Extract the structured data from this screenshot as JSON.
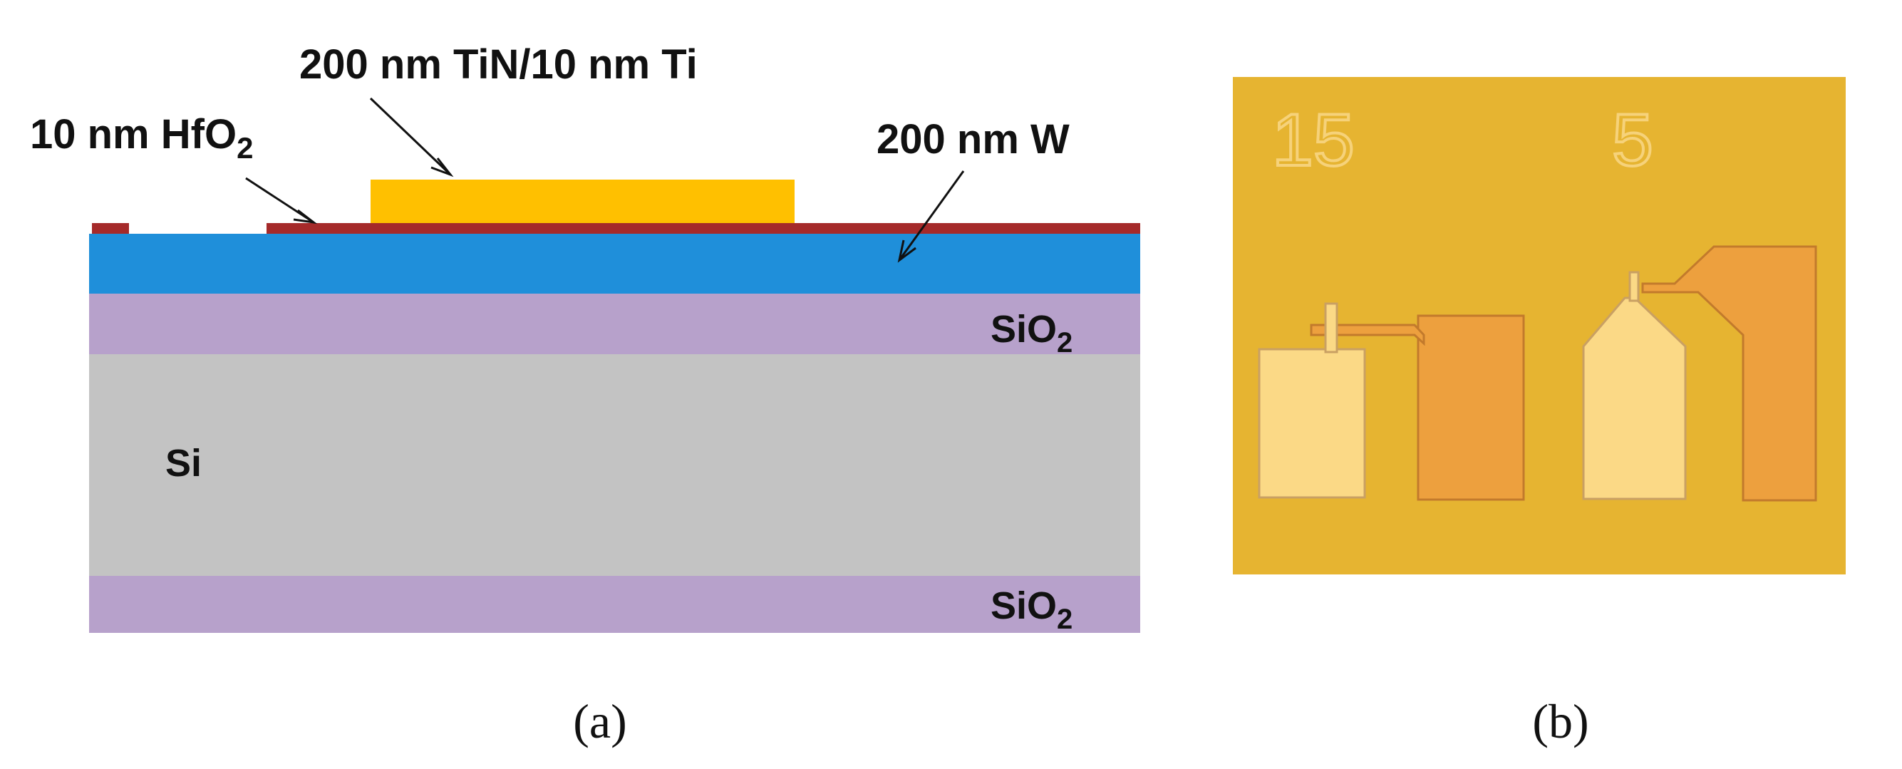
{
  "panel_a": {
    "labels": {
      "tin_ti": "200 nm TiN/10 nm Ti",
      "hfo2_prefix": "10 nm HfO",
      "hfo2_sub": "2",
      "w": "200 nm W",
      "sio2_top_prefix": "SiO",
      "sio2_top_sub": "2",
      "si": "Si",
      "sio2_bottom_prefix": "SiO",
      "sio2_bottom_sub": "2"
    },
    "colors": {
      "tin_ti": "#FFC000",
      "hfo2": "#A52A2A",
      "w": "#1F8FDA",
      "sio2": "#B7A1CB",
      "si": "#C3C3C3"
    },
    "caption": "(a)"
  },
  "panel_b": {
    "marks": [
      "15",
      "5"
    ],
    "colors": {
      "background": "#E6B431",
      "light_electrode": "#FBD986",
      "dark_electrode": "#EDA03E"
    },
    "caption": "(b)"
  }
}
